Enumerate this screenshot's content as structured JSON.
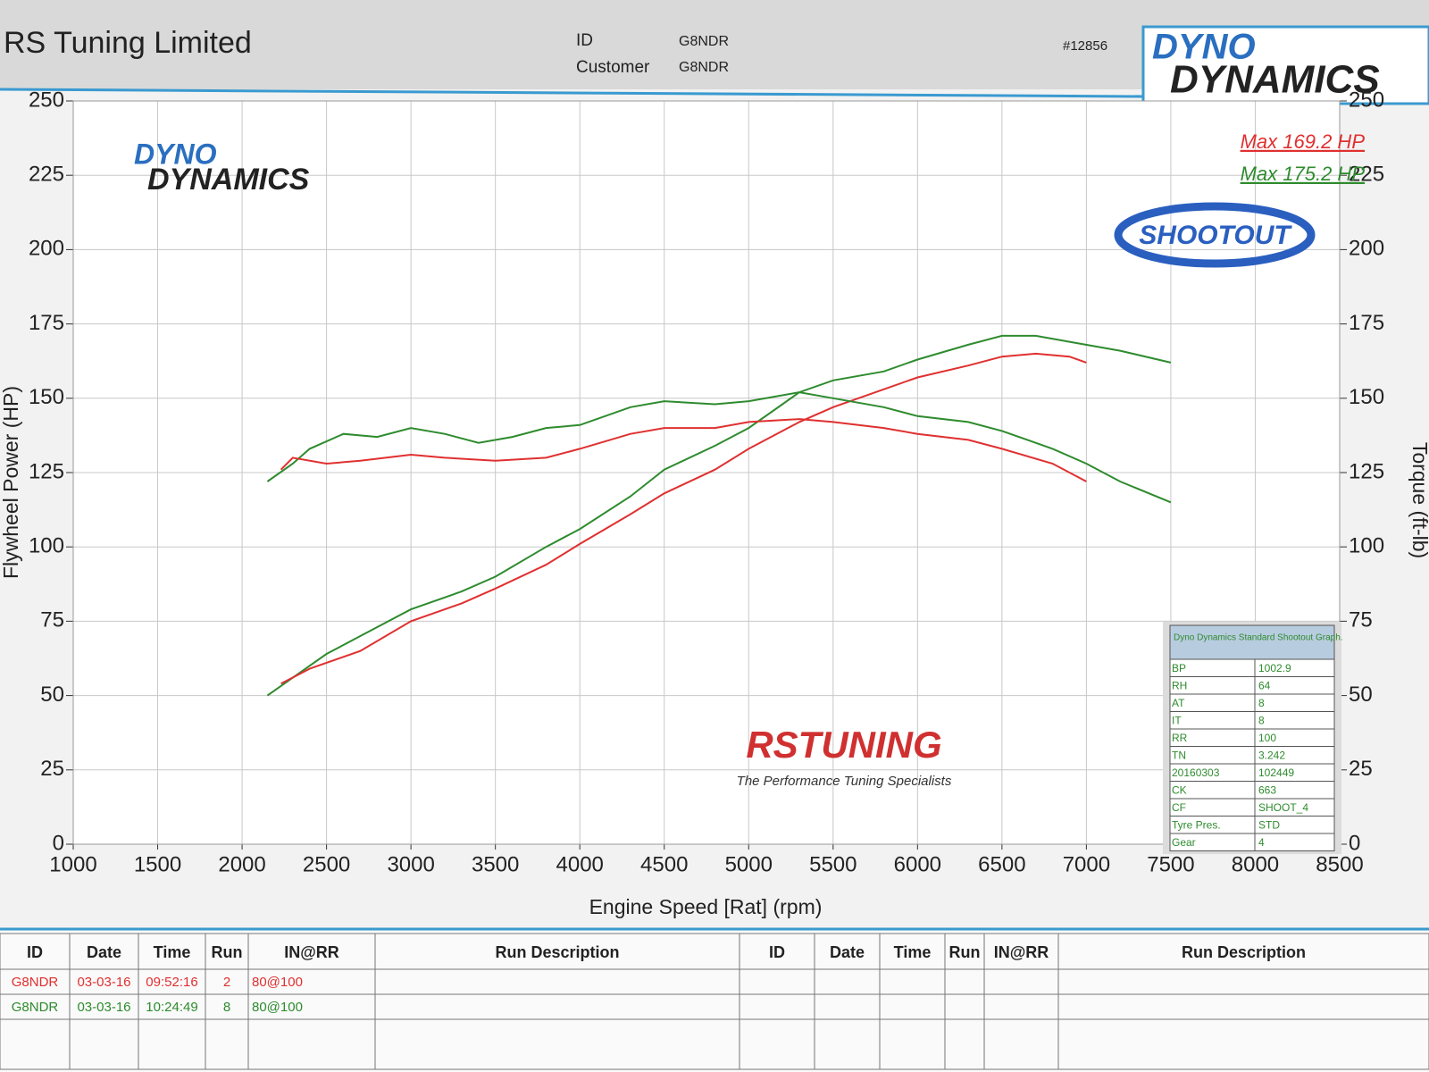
{
  "header": {
    "company": "RS Tuning Limited",
    "id_label": "ID",
    "id": "G8NDR",
    "customer_label": "Customer",
    "customer": "G8NDR",
    "number": "#12856",
    "logo_top": "DYNO",
    "logo_bottom": "DYNAMICS"
  },
  "logos": {
    "dyno_top": "DYNO",
    "dyno_bottom": "DYNAMICS",
    "shootout": "SHOOTOUT",
    "rstuning": "RSTUNING",
    "slogan": "The Performance Tuning Specialists"
  },
  "chart_data": {
    "type": "line",
    "xlabel": "Engine Speed [Rat] (rpm)",
    "ylabel": "Flywheel Power (HP)",
    "y2label": "Torque (ft-lb)",
    "xlim": [
      1000,
      8500
    ],
    "xticks": [
      1000,
      1500,
      2000,
      2500,
      3000,
      3500,
      4000,
      4500,
      5000,
      5500,
      6000,
      6500,
      7000,
      7500,
      8000,
      8500
    ],
    "ylim": [
      0,
      250
    ],
    "yticks": [
      0,
      25,
      50,
      75,
      100,
      125,
      150,
      175,
      200,
      225,
      250
    ],
    "y2lim": [
      0,
      250
    ],
    "y2ticks": [
      0,
      25,
      50,
      75,
      100,
      125,
      150,
      175,
      200,
      225,
      250
    ],
    "grid": true,
    "series": [
      {
        "color": "#2e8b2e",
        "x": [
          2150,
          2300,
          2500,
          2700,
          3000,
          3300,
          3500,
          3800,
          4000,
          4300,
          4500,
          4800,
          5000,
          5200,
          5300,
          5500,
          5800,
          6000,
          6300,
          6500,
          6700,
          6900,
          7200,
          7500
        ],
        "values": [
          50,
          56,
          64,
          70,
          79,
          85,
          90,
          100,
          106,
          117,
          126,
          134,
          140,
          148,
          152,
          156,
          159,
          163,
          168,
          171,
          171,
          169,
          166,
          162
        ]
      },
      {
        "color": "#e03030",
        "x": [
          2230,
          2400,
          2700,
          3000,
          3300,
          3500,
          3800,
          4000,
          4300,
          4500,
          4800,
          5000,
          5300,
          5500,
          5800,
          6000,
          6300,
          6500,
          6700,
          6900,
          7000
        ],
        "values": [
          54,
          59,
          65,
          75,
          81,
          86,
          94,
          101,
          111,
          118,
          126,
          133,
          142,
          147,
          153,
          157,
          161,
          164,
          165,
          164,
          162
        ]
      },
      {
        "color": "#2e8b2e",
        "axis": "y2",
        "x": [
          2150,
          2300,
          2400,
          2600,
          2800,
          3000,
          3200,
          3400,
          3600,
          3800,
          4000,
          4300,
          4500,
          4800,
          5000,
          5300,
          5500,
          5800,
          6000,
          6300,
          6500,
          6800,
          7000,
          7200,
          7500
        ],
        "values": [
          122,
          128,
          133,
          138,
          137,
          140,
          138,
          135,
          137,
          140,
          141,
          147,
          149,
          148,
          149,
          152,
          150,
          147,
          144,
          142,
          139,
          133,
          128,
          122,
          115
        ]
      },
      {
        "color": "#e03030",
        "axis": "y2",
        "x": [
          2230,
          2300,
          2500,
          2700,
          3000,
          3200,
          3500,
          3800,
          4000,
          4300,
          4500,
          4800,
          5000,
          5300,
          5500,
          5800,
          6000,
          6300,
          6500,
          6800,
          7000
        ],
        "values": [
          126,
          130,
          128,
          129,
          131,
          130,
          129,
          130,
          133,
          138,
          140,
          140,
          142,
          143,
          142,
          140,
          138,
          136,
          133,
          128,
          122
        ]
      }
    ],
    "annotations": [
      {
        "text": "Max 169.2 HP",
        "color": "#e03030"
      },
      {
        "text": "Max 175.2 HP",
        "color": "#2e8b2e"
      }
    ]
  },
  "info_table": {
    "title": "Dyno Dynamics Standard Shootout Graph.",
    "rows": [
      [
        "BP",
        "1002.9"
      ],
      [
        "RH",
        "64"
      ],
      [
        "AT",
        "8"
      ],
      [
        "IT",
        "8"
      ],
      [
        "RR",
        "100"
      ],
      [
        "TN",
        "3.242"
      ],
      [
        "20160303",
        "102449"
      ],
      [
        "CK",
        "663"
      ],
      [
        "CF",
        "SHOOT_4"
      ],
      [
        "Tyre Pres.",
        "STD"
      ],
      [
        "Gear",
        "4"
      ]
    ]
  },
  "runs_table": {
    "headers": [
      "ID",
      "Date",
      "Time",
      "Run",
      "IN@RR",
      "Run Description",
      "ID",
      "Date",
      "Time",
      "Run",
      "IN@RR",
      "Run Description"
    ],
    "rows": [
      {
        "color": "#e03030",
        "cells": [
          "G8NDR",
          "03-03-16",
          "09:52:16",
          "2",
          "80@100"
        ]
      },
      {
        "color": "#2e8b2e",
        "cells": [
          "G8NDR",
          "03-03-16",
          "10:24:49",
          "8",
          "80@100"
        ]
      }
    ]
  }
}
